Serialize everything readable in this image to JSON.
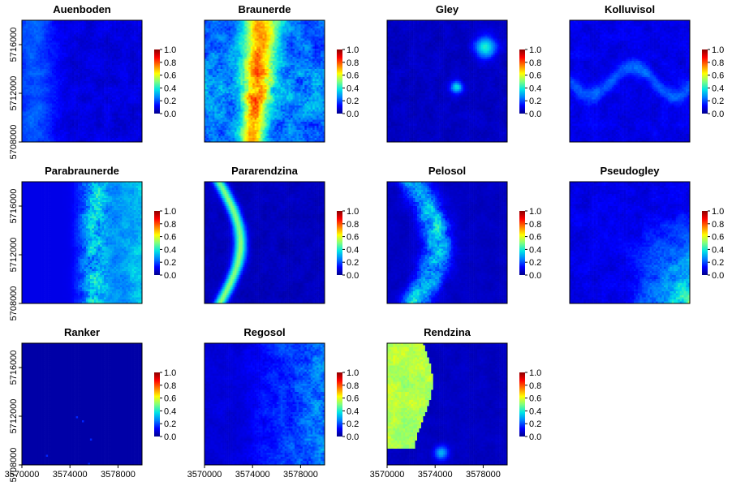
{
  "chart_data": {
    "type": "heatmap",
    "color_scale": [
      "#00008B",
      "#0000FF",
      "#007FFF",
      "#00E5E5",
      "#7FFF7F",
      "#FFFF00",
      "#FF7F00",
      "#FF0000",
      "#8B0000"
    ],
    "colorbar_ticks": [
      "0.0",
      "0.2",
      "0.4",
      "0.6",
      "0.8",
      "1.0"
    ],
    "value_range": [
      0,
      1
    ],
    "x_ticks": [
      "3570000",
      "3574000",
      "3578000"
    ],
    "y_ticks": [
      "5708000",
      "5712000",
      "5716000"
    ],
    "xlim": [
      3570000,
      3580000
    ],
    "ylim": [
      5708000,
      5718000
    ],
    "panels": [
      {
        "title": "Auenboden",
        "level": 0.08,
        "pattern": "valley-left"
      },
      {
        "title": "Braunerde",
        "level": 0.35,
        "pattern": "central-band"
      },
      {
        "title": "Gley",
        "level": 0.05,
        "pattern": "spots"
      },
      {
        "title": "Kolluvisol",
        "level": 0.1,
        "pattern": "streams"
      },
      {
        "title": "Parabraunerde",
        "level": 0.3,
        "pattern": "east-ridges"
      },
      {
        "title": "Pararendzina",
        "level": 0.1,
        "pattern": "curve-edge"
      },
      {
        "title": "Pelosol",
        "level": 0.1,
        "pattern": "curve-edge-wide"
      },
      {
        "title": "Pseudogley",
        "level": 0.25,
        "pattern": "southeast"
      },
      {
        "title": "Ranker",
        "level": 0.02,
        "pattern": "sparse"
      },
      {
        "title": "Regosol",
        "level": 0.18,
        "pattern": "east-speckle"
      },
      {
        "title": "Rendzina",
        "level": 0.5,
        "pattern": "west-block"
      }
    ]
  }
}
